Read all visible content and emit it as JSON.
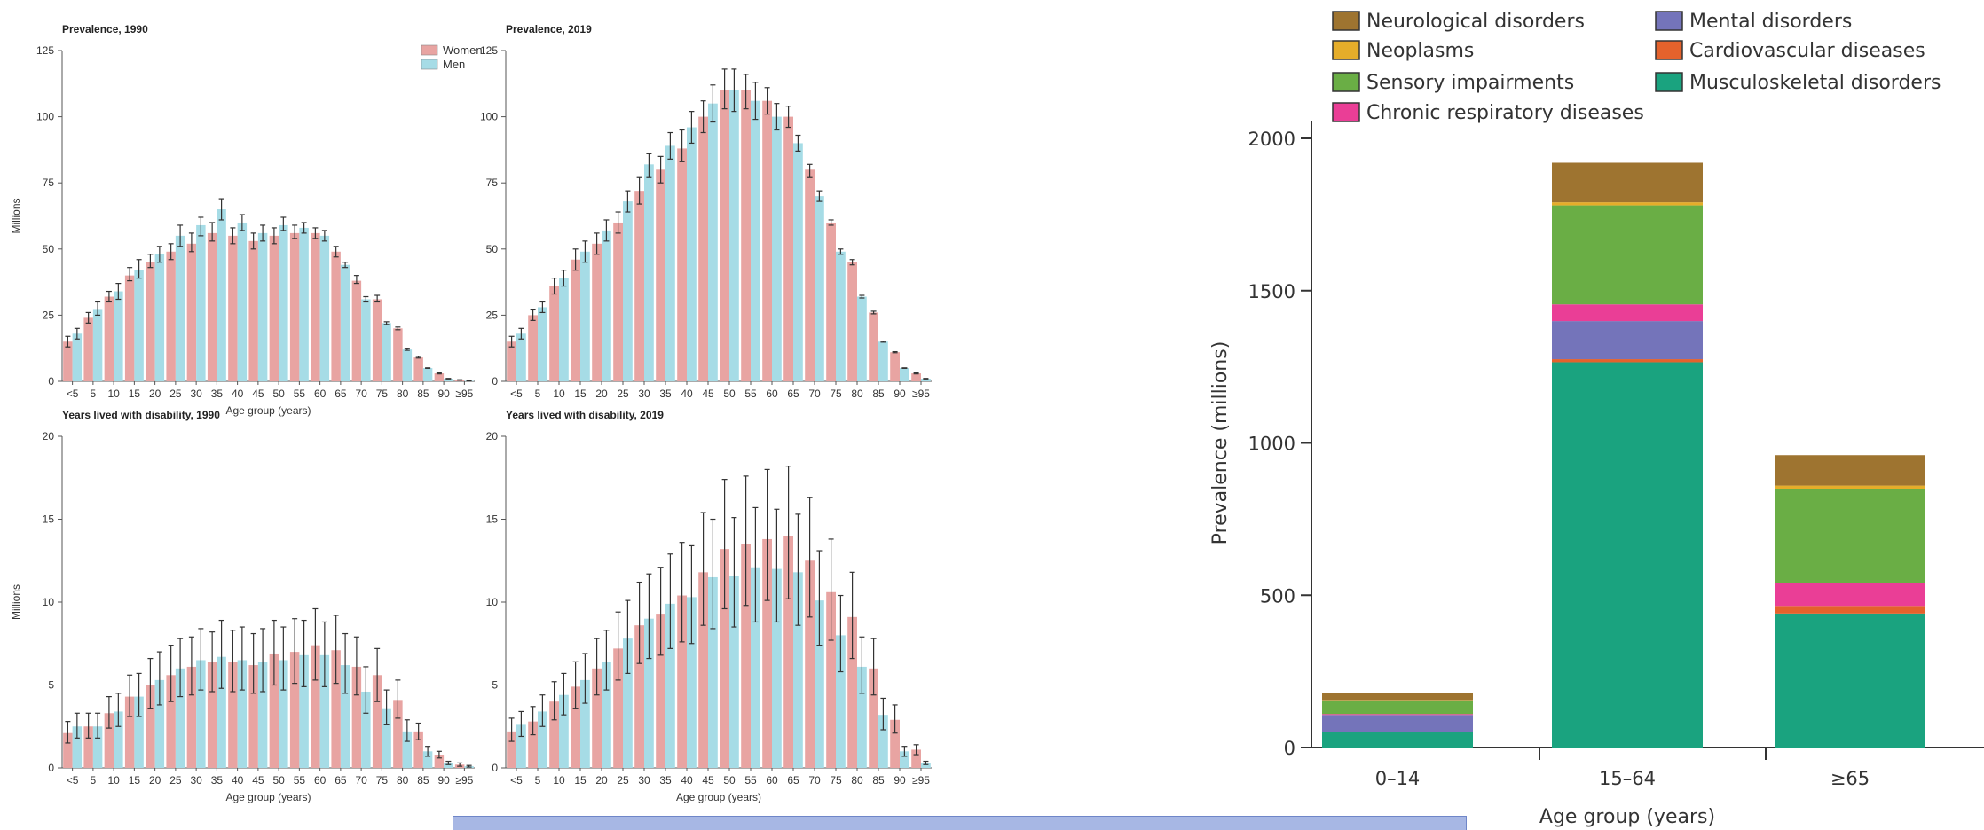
{
  "colors": {
    "women": "#e8a4a2",
    "men": "#a6dce6",
    "errorbar": "#333333"
  },
  "chart_data": [
    {
      "type": "bar",
      "title": "Prevalence, 1990",
      "ylabel": "Millions",
      "xlabel": "Age group (years)",
      "ylim": [
        0,
        125
      ],
      "yticks": [
        0,
        25,
        50,
        75,
        100,
        125
      ],
      "categories": [
        "<5",
        "5",
        "10",
        "15",
        "20",
        "25",
        "30",
        "35",
        "40",
        "45",
        "50",
        "55",
        "60",
        "65",
        "70",
        "75",
        "80",
        "85",
        "90",
        "≥95"
      ],
      "legend": {
        "position": "top-right",
        "entries": [
          "Women",
          "Men"
        ]
      },
      "series": [
        {
          "name": "Women",
          "values": [
            15,
            24,
            32,
            40,
            45,
            49,
            52,
            56,
            55,
            53,
            55,
            56,
            56,
            49,
            38,
            31,
            20,
            9,
            3,
            0.5
          ],
          "err": [
            [
              13,
              17
            ],
            [
              22,
              26
            ],
            [
              30,
              34
            ],
            [
              38,
              43
            ],
            [
              43,
              48
            ],
            [
              46,
              52
            ],
            [
              49,
              56
            ],
            [
              53,
              60
            ],
            [
              52,
              58
            ],
            [
              50,
              56
            ],
            [
              52,
              58
            ],
            [
              54,
              59
            ],
            [
              54,
              58
            ],
            [
              47,
              51
            ],
            [
              37,
              40
            ],
            [
              30,
              32.5
            ],
            [
              19.5,
              20.5
            ],
            [
              8.8,
              9.4
            ],
            [
              2.8,
              3.2
            ],
            [
              0.4,
              0.6
            ]
          ]
        },
        {
          "name": "Men",
          "values": [
            18,
            27,
            34,
            42,
            48,
            55,
            59,
            65,
            60,
            56,
            59,
            58,
            55,
            44,
            31,
            22,
            12,
            5,
            1,
            0.2
          ],
          "err": [
            [
              16,
              20
            ],
            [
              25,
              30
            ],
            [
              31,
              37
            ],
            [
              39,
              46
            ],
            [
              45,
              51
            ],
            [
              51,
              59
            ],
            [
              55,
              62
            ],
            [
              61,
              69
            ],
            [
              57,
              63
            ],
            [
              53,
              59
            ],
            [
              57,
              62
            ],
            [
              56,
              60
            ],
            [
              53,
              57
            ],
            [
              43,
              45
            ],
            [
              30,
              32
            ],
            [
              21.5,
              22.5
            ],
            [
              11.7,
              12.3
            ],
            [
              4.9,
              5.1
            ],
            [
              0.9,
              1.1
            ],
            [
              0.1,
              0.3
            ]
          ]
        }
      ]
    },
    {
      "type": "bar",
      "title": "Prevalence, 2019",
      "xlabel": "",
      "ylim": [
        0,
        125
      ],
      "yticks": [
        0,
        25,
        50,
        75,
        100,
        125
      ],
      "categories": [
        "<5",
        "5",
        "10",
        "15",
        "20",
        "25",
        "30",
        "35",
        "40",
        "45",
        "50",
        "55",
        "60",
        "65",
        "70",
        "75",
        "80",
        "85",
        "90",
        "≥95"
      ],
      "series": [
        {
          "name": "Women",
          "values": [
            15,
            25,
            36,
            46,
            52,
            60,
            72,
            80,
            88,
            100,
            110,
            110,
            106,
            100,
            80,
            60,
            45,
            26,
            11,
            3
          ],
          "err": [
            [
              13,
              17
            ],
            [
              23,
              27
            ],
            [
              33,
              39
            ],
            [
              42,
              50
            ],
            [
              48,
              56
            ],
            [
              56,
              64
            ],
            [
              67,
              77
            ],
            [
              75,
              85
            ],
            [
              83,
              95
            ],
            [
              94,
              106
            ],
            [
              103,
              118
            ],
            [
              103,
              116
            ],
            [
              101,
              111
            ],
            [
              96,
              104
            ],
            [
              77,
              82
            ],
            [
              59,
              61
            ],
            [
              44,
              46
            ],
            [
              25.5,
              26.5
            ],
            [
              10.8,
              11.2
            ],
            [
              2.8,
              3.2
            ]
          ]
        },
        {
          "name": "Men",
          "values": [
            18,
            28,
            39,
            49,
            57,
            68,
            82,
            89,
            96,
            105,
            110,
            106,
            100,
            90,
            70,
            49,
            32,
            15,
            5,
            1
          ],
          "err": [
            [
              16,
              20
            ],
            [
              26,
              30
            ],
            [
              36,
              42
            ],
            [
              45,
              53
            ],
            [
              53,
              61
            ],
            [
              64,
              72
            ],
            [
              77,
              86
            ],
            [
              84,
              94
            ],
            [
              90,
              102
            ],
            [
              98,
              112
            ],
            [
              102,
              118
            ],
            [
              99,
              113
            ],
            [
              95,
              105
            ],
            [
              87,
              93
            ],
            [
              68,
              72
            ],
            [
              48,
              50
            ],
            [
              31.5,
              32.5
            ],
            [
              14.8,
              15.2
            ],
            [
              4.9,
              5.1
            ],
            [
              0.9,
              1.1
            ]
          ]
        }
      ]
    },
    {
      "type": "bar",
      "title": "Years lived with disability, 1990",
      "ylabel": "Millions",
      "xlabel": "Age group (years)",
      "ylim": [
        0,
        20
      ],
      "yticks": [
        0,
        5,
        10,
        15,
        20
      ],
      "categories": [
        "<5",
        "5",
        "10",
        "15",
        "20",
        "25",
        "30",
        "35",
        "40",
        "45",
        "50",
        "55",
        "60",
        "65",
        "70",
        "75",
        "80",
        "85",
        "90",
        "≥95"
      ],
      "series": [
        {
          "name": "Women",
          "values": [
            2.1,
            2.5,
            3.3,
            4.3,
            5.0,
            5.6,
            6.1,
            6.4,
            6.4,
            6.2,
            6.9,
            7.0,
            7.4,
            7.1,
            6.1,
            5.6,
            4.1,
            2.2,
            0.8,
            0.2
          ],
          "err": [
            [
              1.5,
              2.8
            ],
            [
              1.8,
              3.3
            ],
            [
              2.4,
              4.3
            ],
            [
              3.1,
              5.6
            ],
            [
              3.6,
              6.6
            ],
            [
              4.0,
              7.4
            ],
            [
              4.4,
              7.9
            ],
            [
              4.6,
              8.2
            ],
            [
              4.6,
              8.3
            ],
            [
              4.5,
              8.1
            ],
            [
              5.0,
              8.9
            ],
            [
              5.1,
              9.0
            ],
            [
              5.3,
              9.6
            ],
            [
              5.1,
              9.2
            ],
            [
              4.4,
              7.9
            ],
            [
              4.0,
              7.2
            ],
            [
              3.0,
              5.3
            ],
            [
              1.7,
              2.7
            ],
            [
              0.6,
              1.0
            ],
            [
              0.1,
              0.3
            ]
          ]
        },
        {
          "name": "Men",
          "values": [
            2.5,
            2.5,
            3.4,
            4.3,
            5.3,
            6.0,
            6.5,
            6.7,
            6.5,
            6.4,
            6.5,
            6.8,
            6.8,
            6.2,
            4.6,
            3.6,
            2.2,
            1.0,
            0.3,
            0.1
          ],
          "err": [
            [
              1.8,
              3.3
            ],
            [
              1.8,
              3.3
            ],
            [
              2.5,
              4.5
            ],
            [
              3.1,
              5.7
            ],
            [
              3.8,
              7.0
            ],
            [
              4.3,
              7.8
            ],
            [
              4.7,
              8.4
            ],
            [
              4.8,
              8.9
            ],
            [
              4.7,
              8.5
            ],
            [
              4.6,
              8.4
            ],
            [
              4.7,
              8.5
            ],
            [
              4.9,
              8.9
            ],
            [
              4.9,
              8.8
            ],
            [
              4.5,
              8.1
            ],
            [
              3.3,
              6.1
            ],
            [
              2.6,
              4.7
            ],
            [
              1.6,
              2.9
            ],
            [
              0.7,
              1.3
            ],
            [
              0.2,
              0.4
            ],
            [
              0.05,
              0.15
            ]
          ]
        }
      ]
    },
    {
      "type": "bar",
      "title": "Years lived with disability, 2019",
      "xlabel": "Age group (years)",
      "ylim": [
        0,
        20
      ],
      "yticks": [
        0,
        5,
        10,
        15,
        20
      ],
      "categories": [
        "<5",
        "5",
        "10",
        "15",
        "20",
        "25",
        "30",
        "35",
        "40",
        "45",
        "50",
        "55",
        "60",
        "65",
        "70",
        "75",
        "80",
        "85",
        "90",
        "≥95"
      ],
      "series": [
        {
          "name": "Women",
          "values": [
            2.2,
            2.8,
            4.0,
            4.9,
            6.0,
            7.2,
            8.6,
            9.3,
            10.4,
            11.8,
            13.2,
            13.5,
            13.8,
            14.0,
            12.5,
            10.6,
            9.1,
            6.0,
            2.9,
            1.1
          ],
          "err": [
            [
              1.6,
              3.0
            ],
            [
              2.0,
              3.7
            ],
            [
              2.9,
              5.2
            ],
            [
              3.6,
              6.4
            ],
            [
              4.4,
              7.8
            ],
            [
              5.3,
              9.4
            ],
            [
              6.3,
              11.2
            ],
            [
              6.8,
              12.1
            ],
            [
              7.6,
              13.6
            ],
            [
              8.6,
              15.4
            ],
            [
              9.6,
              17.4
            ],
            [
              9.8,
              17.6
            ],
            [
              10.1,
              18.0
            ],
            [
              10.2,
              18.2
            ],
            [
              9.1,
              16.3
            ],
            [
              7.7,
              13.8
            ],
            [
              6.6,
              11.8
            ],
            [
              4.4,
              7.8
            ],
            [
              2.1,
              3.8
            ],
            [
              0.8,
              1.4
            ]
          ]
        },
        {
          "name": "Men",
          "values": [
            2.6,
            3.4,
            4.4,
            5.3,
            6.4,
            7.8,
            9.0,
            9.9,
            10.3,
            11.5,
            11.6,
            12.1,
            12.0,
            11.8,
            10.1,
            8.0,
            6.1,
            3.2,
            1.0,
            0.3
          ],
          "err": [
            [
              1.9,
              3.4
            ],
            [
              2.5,
              4.4
            ],
            [
              3.2,
              5.7
            ],
            [
              3.9,
              6.9
            ],
            [
              4.7,
              8.3
            ],
            [
              5.7,
              10.1
            ],
            [
              6.6,
              11.7
            ],
            [
              7.2,
              12.9
            ],
            [
              7.5,
              13.4
            ],
            [
              8.4,
              15.0
            ],
            [
              8.5,
              15.1
            ],
            [
              8.8,
              15.7
            ],
            [
              8.8,
              15.6
            ],
            [
              8.6,
              15.3
            ],
            [
              7.4,
              13.1
            ],
            [
              5.8,
              10.4
            ],
            [
              4.5,
              7.9
            ],
            [
              2.3,
              4.2
            ],
            [
              0.7,
              1.3
            ],
            [
              0.2,
              0.4
            ]
          ]
        }
      ]
    },
    {
      "type": "bar",
      "stacked": true,
      "xlabel": "Age group (years)",
      "ylabel": "Prevalence (millions)",
      "ylim": [
        0,
        2000
      ],
      "yticks": [
        0,
        500,
        1000,
        1500,
        2000
      ],
      "categories": [
        "0–14",
        "15–64",
        "≥65"
      ],
      "legend": {
        "position": "top",
        "columns": 2
      },
      "series": [
        {
          "name": "Musculoskeletal disorders",
          "color": "#1aa37f",
          "values": [
            50,
            1265,
            440
          ]
        },
        {
          "name": "Cardiovascular diseases",
          "color": "#e4622c",
          "values": [
            2,
            10,
            25
          ]
        },
        {
          "name": "Mental disorders",
          "color": "#7474ba",
          "values": [
            55,
            125,
            0
          ]
        },
        {
          "name": "Chronic respiratory diseases",
          "color": "#ea3e96",
          "values": [
            3,
            55,
            75
          ]
        },
        {
          "name": "Sensory impairments",
          "color": "#6aae45",
          "values": [
            45,
            325,
            310
          ]
        },
        {
          "name": "Neoplasms",
          "color": "#e5ad2a",
          "values": [
            1,
            10,
            10
          ]
        },
        {
          "name": "Neurological disorders",
          "color": "#9e7430",
          "values": [
            24,
            130,
            100
          ]
        }
      ],
      "legend_order": [
        "Neurological disorders",
        "Mental disorders",
        "Neoplasms",
        "Cardiovascular diseases",
        "Sensory impairments",
        "Musculoskeletal disorders",
        "Chronic respiratory diseases"
      ]
    }
  ]
}
